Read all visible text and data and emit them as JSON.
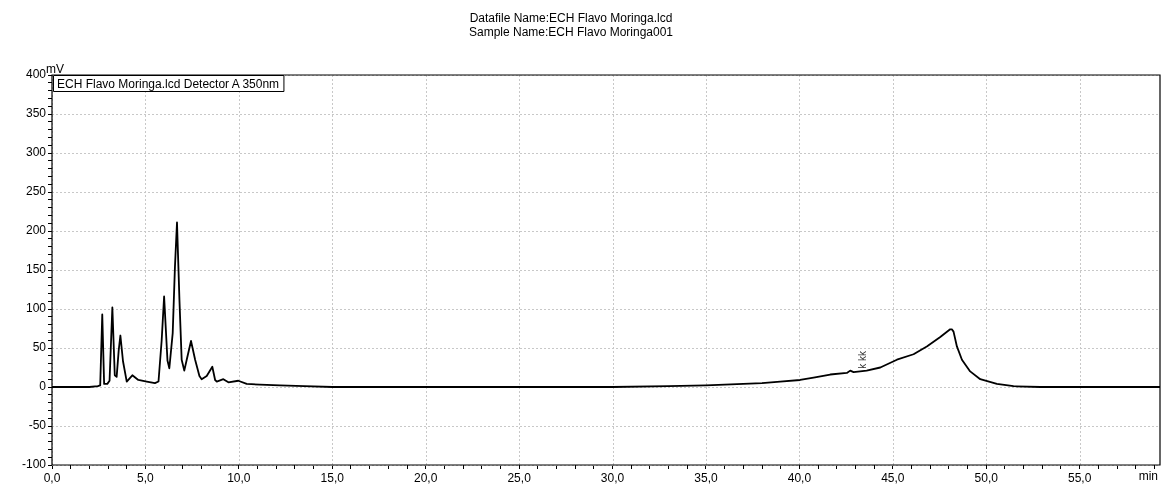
{
  "chart_data": {
    "type": "line",
    "title": "Datafile Name:ECH Flavo Moringa.lcd",
    "subtitle": "Sample Name:ECH Flavo Moringa001",
    "xlabel": "min",
    "ylabel": "mV",
    "legend": "top left",
    "grid": true,
    "line_style": "solid",
    "xlim": [
      0,
      59.3
    ],
    "ylim": [
      -100,
      400
    ],
    "xticks": [
      {
        "value": 0,
        "label": "0,0"
      },
      {
        "value": 1,
        "label": null
      },
      {
        "value": 2,
        "label": null
      },
      {
        "value": 3,
        "label": null
      },
      {
        "value": 4,
        "label": null
      },
      {
        "value": 5,
        "label": "5,0"
      },
      {
        "value": 6,
        "label": null
      },
      {
        "value": 7,
        "label": null
      },
      {
        "value": 8,
        "label": null
      },
      {
        "value": 9,
        "label": null
      },
      {
        "value": 10,
        "label": "10,0"
      },
      {
        "value": 11,
        "label": null
      },
      {
        "value": 12,
        "label": null
      },
      {
        "value": 13,
        "label": null
      },
      {
        "value": 14,
        "label": null
      },
      {
        "value": 15,
        "label": "15,0"
      },
      {
        "value": 16,
        "label": null
      },
      {
        "value": 17,
        "label": null
      },
      {
        "value": 18,
        "label": null
      },
      {
        "value": 19,
        "label": null
      },
      {
        "value": 20,
        "label": "20,0"
      },
      {
        "value": 21,
        "label": null
      },
      {
        "value": 22,
        "label": null
      },
      {
        "value": 23,
        "label": null
      },
      {
        "value": 24,
        "label": null
      },
      {
        "value": 25,
        "label": "25,0"
      },
      {
        "value": 26,
        "label": null
      },
      {
        "value": 27,
        "label": null
      },
      {
        "value": 28,
        "label": null
      },
      {
        "value": 29,
        "label": null
      },
      {
        "value": 30,
        "label": "30,0"
      },
      {
        "value": 31,
        "label": null
      },
      {
        "value": 32,
        "label": null
      },
      {
        "value": 33,
        "label": null
      },
      {
        "value": 34,
        "label": null
      },
      {
        "value": 35,
        "label": "35,0"
      },
      {
        "value": 36,
        "label": null
      },
      {
        "value": 37,
        "label": null
      },
      {
        "value": 38,
        "label": null
      },
      {
        "value": 39,
        "label": null
      },
      {
        "value": 40,
        "label": "40,0"
      },
      {
        "value": 41,
        "label": null
      },
      {
        "value": 42,
        "label": null
      },
      {
        "value": 43,
        "label": null
      },
      {
        "value": 44,
        "label": null
      },
      {
        "value": 45,
        "label": "45,0"
      },
      {
        "value": 46,
        "label": null
      },
      {
        "value": 47,
        "label": null
      },
      {
        "value": 48,
        "label": null
      },
      {
        "value": 49,
        "label": null
      },
      {
        "value": 50,
        "label": "50,0"
      },
      {
        "value": 51,
        "label": null
      },
      {
        "value": 52,
        "label": null
      },
      {
        "value": 53,
        "label": null
      },
      {
        "value": 54,
        "label": null
      },
      {
        "value": 55,
        "label": "55,0"
      },
      {
        "value": 56,
        "label": null
      },
      {
        "value": 57,
        "label": null
      },
      {
        "value": 58,
        "label": null
      },
      {
        "value": 59,
        "label": null
      }
    ],
    "yticks": [
      -100,
      {
        "value": -90,
        "label": null
      },
      {
        "value": -80,
        "label": null
      },
      {
        "value": -70,
        "label": null
      },
      {
        "value": -60,
        "label": null
      },
      -50,
      {
        "value": -40,
        "label": null
      },
      {
        "value": -30,
        "label": null
      },
      {
        "value": -20,
        "label": null
      },
      {
        "value": -10,
        "label": null
      },
      0,
      {
        "value": 10,
        "label": null
      },
      {
        "value": 20,
        "label": null
      },
      {
        "value": 30,
        "label": null
      },
      {
        "value": 40,
        "label": null
      },
      50,
      {
        "value": 60,
        "label": null
      },
      {
        "value": 70,
        "label": null
      },
      {
        "value": 80,
        "label": null
      },
      {
        "value": 90,
        "label": null
      },
      100,
      {
        "value": 110,
        "label": null
      },
      {
        "value": 120,
        "label": null
      },
      {
        "value": 130,
        "label": null
      },
      {
        "value": 140,
        "label": null
      },
      150,
      {
        "value": 160,
        "label": null
      },
      {
        "value": 170,
        "label": null
      },
      {
        "value": 180,
        "label": null
      },
      {
        "value": 190,
        "label": null
      },
      200,
      {
        "value": 210,
        "label": null
      },
      {
        "value": 220,
        "label": null
      },
      {
        "value": 230,
        "label": null
      },
      {
        "value": 240,
        "label": null
      },
      250,
      {
        "value": 260,
        "label": null
      },
      {
        "value": 270,
        "label": null
      },
      {
        "value": 280,
        "label": null
      },
      {
        "value": 290,
        "label": null
      },
      300,
      {
        "value": 310,
        "label": null
      },
      {
        "value": 320,
        "label": null
      },
      {
        "value": 330,
        "label": null
      },
      {
        "value": 340,
        "label": null
      },
      350,
      {
        "value": 360,
        "label": null
      },
      {
        "value": 370,
        "label": null
      },
      {
        "value": 380,
        "label": null
      },
      {
        "value": 390,
        "label": null
      },
      400
    ],
    "annotations": [
      {
        "text": "k kk",
        "x": 43.2,
        "y": 22
      }
    ],
    "series": [
      {
        "name": "ECH Flavo Moringa.lcd Detector A 350nm",
        "color": "#000000",
        "x": [
          0,
          2.0,
          2.45,
          2.58,
          2.69,
          2.79,
          2.96,
          3.08,
          3.23,
          3.36,
          3.46,
          3.57,
          3.66,
          3.8,
          4.0,
          4.3,
          4.62,
          5.07,
          5.51,
          5.7,
          5.87,
          6.0,
          6.18,
          6.28,
          6.46,
          6.58,
          6.69,
          6.82,
          6.94,
          7.08,
          7.21,
          7.44,
          7.66,
          7.89,
          8.01,
          8.28,
          8.58,
          8.73,
          8.82,
          9.17,
          9.44,
          9.97,
          10.42,
          11.13,
          12.2,
          13.5,
          15,
          20,
          25,
          30,
          33,
          35,
          37,
          38,
          38.97,
          40.04,
          40.76,
          41.65,
          42.54,
          42.72,
          42.9,
          43.6,
          44.33,
          45.22,
          46.11,
          46.82,
          47.54,
          48.07,
          48.16,
          48.25,
          48.43,
          48.7,
          49.14,
          49.68,
          50.57,
          51.46,
          52.89,
          55,
          59.3
        ],
        "values": [
          0,
          0,
          1,
          2,
          93,
          4,
          4,
          8,
          102,
          15,
          13,
          47,
          66,
          33,
          7,
          15,
          9,
          7,
          5,
          7,
          60,
          116,
          34,
          24,
          69,
          154,
          211,
          112,
          35,
          21,
          35,
          59,
          35,
          14,
          10,
          14,
          26,
          9,
          7,
          10,
          6,
          8,
          4,
          3,
          2,
          1,
          0,
          0,
          0,
          0,
          1,
          2,
          4,
          5,
          7,
          9,
          12,
          16,
          18,
          21,
          19,
          21,
          25,
          35,
          42,
          52,
          64,
          74,
          74,
          71,
          52,
          35,
          20,
          10,
          4,
          1,
          0,
          0,
          0
        ]
      }
    ]
  }
}
